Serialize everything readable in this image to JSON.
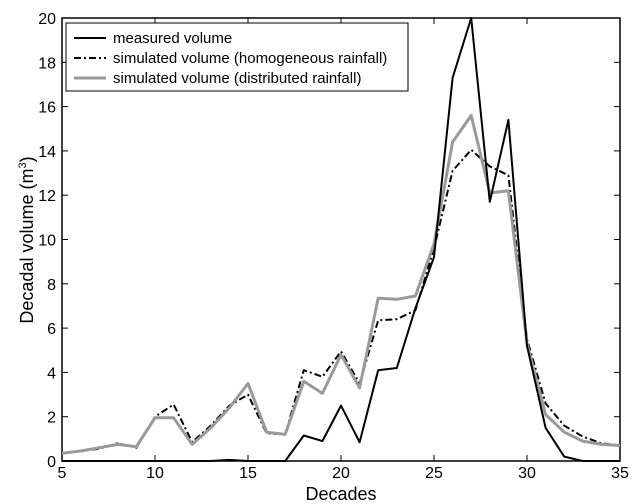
{
  "chart_data": {
    "type": "line",
    "title": "",
    "xlabel": "Decades",
    "ylabel": "Decadal volume (m",
    "ylabel_sup": "3",
    "ylabel_close": ")",
    "xlim": [
      5,
      35
    ],
    "ylim": [
      0,
      20
    ],
    "xticks": [
      5,
      10,
      15,
      20,
      25,
      30,
      35
    ],
    "yticks": [
      0,
      2,
      4,
      6,
      8,
      10,
      12,
      14,
      16,
      18,
      20
    ],
    "grid": false,
    "legend_position": "top-left",
    "x": [
      5,
      6,
      7,
      8,
      9,
      10,
      11,
      12,
      13,
      14,
      15,
      16,
      17,
      18,
      19,
      20,
      21,
      22,
      23,
      24,
      25,
      26,
      27,
      28,
      29,
      30,
      31,
      32,
      33,
      34,
      35
    ],
    "series": [
      {
        "name": "measured volume",
        "color": "#000000",
        "style": "solid",
        "values": [
          0,
          0,
          0,
          0,
          0,
          0,
          0,
          0,
          0,
          0.05,
          0,
          0,
          0,
          1.15,
          0.9,
          2.5,
          0.85,
          4.1,
          4.2,
          6.9,
          9.2,
          17.3,
          20.0,
          11.7,
          15.4,
          5.2,
          1.5,
          0.2,
          0,
          0,
          0
        ]
      },
      {
        "name": "simulated volume (homogeneous rainfall)",
        "color": "#000000",
        "style": "dashdot",
        "values": [
          0.35,
          0.45,
          0.55,
          0.8,
          0.6,
          2.0,
          2.55,
          0.85,
          1.6,
          2.5,
          3.0,
          1.25,
          1.2,
          4.1,
          3.8,
          4.95,
          3.5,
          6.35,
          6.4,
          6.8,
          9.6,
          13.1,
          14.05,
          13.3,
          12.9,
          5.5,
          2.6,
          1.6,
          1.1,
          0.8,
          0.7
        ]
      },
      {
        "name": "simulated volume (distributed rainfall)",
        "color": "#9a9a9a",
        "style": "solid",
        "values": [
          0.35,
          0.45,
          0.6,
          0.75,
          0.65,
          1.95,
          1.95,
          0.75,
          1.5,
          2.4,
          3.5,
          1.3,
          1.2,
          3.6,
          3.05,
          4.8,
          3.3,
          7.35,
          7.3,
          7.45,
          9.8,
          14.4,
          15.6,
          12.1,
          12.2,
          5.3,
          2.1,
          1.3,
          0.9,
          0.75,
          0.7
        ]
      }
    ]
  }
}
